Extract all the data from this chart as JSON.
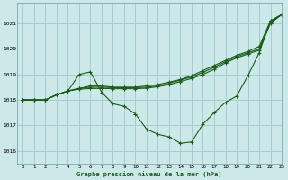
{
  "title": "Graphe pression niveau de la mer (hPa)",
  "bg_color": "#cce8e8",
  "grid_color": "#aacccc",
  "line_color": "#1a5c1a",
  "xlim": [
    -0.5,
    23
  ],
  "ylim": [
    1015.5,
    1021.8
  ],
  "yticks": [
    1016,
    1017,
    1018,
    1019,
    1020,
    1021
  ],
  "xticks": [
    0,
    1,
    2,
    3,
    4,
    5,
    6,
    7,
    8,
    9,
    10,
    11,
    12,
    13,
    14,
    15,
    16,
    17,
    18,
    19,
    20,
    21,
    22,
    23
  ],
  "series": [
    [
      1018.0,
      1018.0,
      1018.0,
      1018.2,
      1018.35,
      1019.0,
      1019.1,
      1018.3,
      1017.85,
      1017.75,
      1017.45,
      1016.85,
      1016.65,
      1016.55,
      1016.3,
      1016.35,
      1017.05,
      1017.5,
      1017.9,
      1018.15,
      1018.95,
      1019.85,
      1021.1,
      1021.35
    ],
    [
      1018.0,
      1018.0,
      1018.0,
      1018.2,
      1018.35,
      1018.45,
      1018.55,
      1018.55,
      1018.5,
      1018.5,
      1018.5,
      1018.55,
      1018.6,
      1018.7,
      1018.8,
      1018.95,
      1019.15,
      1019.35,
      1019.55,
      1019.75,
      1019.9,
      1020.1,
      1021.1,
      1021.35
    ],
    [
      1018.0,
      1018.0,
      1018.0,
      1018.2,
      1018.35,
      1018.45,
      1018.5,
      1018.5,
      1018.48,
      1018.48,
      1018.48,
      1018.5,
      1018.55,
      1018.65,
      1018.78,
      1018.9,
      1019.08,
      1019.28,
      1019.5,
      1019.7,
      1019.85,
      1020.0,
      1021.05,
      1021.35
    ],
    [
      1018.0,
      1018.0,
      1018.0,
      1018.2,
      1018.35,
      1018.42,
      1018.45,
      1018.45,
      1018.44,
      1018.44,
      1018.44,
      1018.46,
      1018.52,
      1018.6,
      1018.72,
      1018.84,
      1019.0,
      1019.2,
      1019.45,
      1019.65,
      1019.8,
      1019.95,
      1021.0,
      1021.35
    ]
  ]
}
